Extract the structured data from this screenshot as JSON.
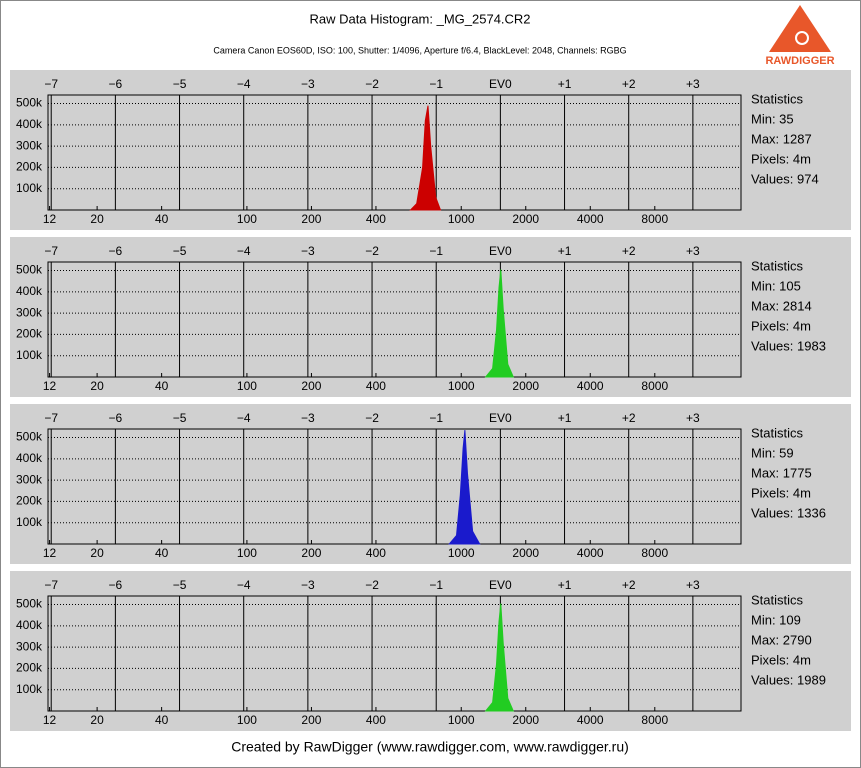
{
  "header": {
    "title": "Raw Data Histogram: _MG_2574.CR2",
    "subtitle": "Camera Canon EOS60D, ISO: 100, Shutter: 1/4096, Aperture f/6.4, BlackLevel: 2048, Channels: RGBG",
    "logo": "RAWDIGGER"
  },
  "footer": "Created by RawDigger (www.rawdigger.com, www.rawdigger.ru)",
  "chart_data": [
    {
      "type": "area",
      "color": "#cc0000",
      "xlog": true,
      "grid": true,
      "x": [
        580,
        620,
        660,
        680,
        700,
        720,
        760,
        800
      ],
      "values": [
        0,
        30000,
        200000,
        420000,
        490000,
        300000,
        60000,
        0
      ],
      "xlim": [
        11.8,
        20200
      ],
      "xticks": [
        12,
        20,
        40,
        100,
        200,
        400,
        1000,
        2000,
        4000,
        8000
      ],
      "x2lim": [
        -7.05,
        3.75
      ],
      "x2ticks": [
        {
          "value": -7,
          "label": "−7"
        },
        {
          "value": -6,
          "label": "−6"
        },
        {
          "value": -5,
          "label": "−5"
        },
        {
          "value": -4,
          "label": "−4"
        },
        {
          "value": -3,
          "label": "−3"
        },
        {
          "value": -2,
          "label": "−2"
        },
        {
          "value": -1,
          "label": "−1"
        },
        {
          "value": 0,
          "label": "EV0"
        },
        {
          "value": 1,
          "label": "+1"
        },
        {
          "value": 2,
          "label": "+2"
        },
        {
          "value": 3,
          "label": "+3"
        }
      ],
      "ylim": [
        0,
        540000
      ],
      "yticks": [
        {
          "value": 100000,
          "label": "100k"
        },
        {
          "value": 200000,
          "label": "200k"
        },
        {
          "value": 300000,
          "label": "300k"
        },
        {
          "value": 400000,
          "label": "400k"
        },
        {
          "value": 500000,
          "label": "500k"
        }
      ],
      "stats": [
        "Statistics",
        "Min: 35",
        "Max: 1287",
        "Pixels: 4m",
        "Values: 974"
      ]
    },
    {
      "type": "area",
      "color": "#22cc22",
      "xlog": true,
      "grid": true,
      "x": [
        1300,
        1400,
        1460,
        1500,
        1530,
        1570,
        1650,
        1750
      ],
      "values": [
        0,
        40000,
        220000,
        420000,
        505000,
        320000,
        60000,
        0
      ],
      "xlim": [
        11.8,
        20200
      ],
      "xticks": [
        12,
        20,
        40,
        100,
        200,
        400,
        1000,
        2000,
        4000,
        8000
      ],
      "x2lim": [
        -7.05,
        3.75
      ],
      "x2ticks": [
        {
          "value": -7,
          "label": "−7"
        },
        {
          "value": -6,
          "label": "−6"
        },
        {
          "value": -5,
          "label": "−5"
        },
        {
          "value": -4,
          "label": "−4"
        },
        {
          "value": -3,
          "label": "−3"
        },
        {
          "value": -2,
          "label": "−2"
        },
        {
          "value": -1,
          "label": "−1"
        },
        {
          "value": 0,
          "label": "EV0"
        },
        {
          "value": 1,
          "label": "+1"
        },
        {
          "value": 2,
          "label": "+2"
        },
        {
          "value": 3,
          "label": "+3"
        }
      ],
      "ylim": [
        0,
        540000
      ],
      "yticks": [
        {
          "value": 100000,
          "label": "100k"
        },
        {
          "value": 200000,
          "label": "200k"
        },
        {
          "value": 300000,
          "label": "300k"
        },
        {
          "value": 400000,
          "label": "400k"
        },
        {
          "value": 500000,
          "label": "500k"
        }
      ],
      "stats": [
        "Statistics",
        "Min: 105",
        "Max: 2814",
        "Pixels: 4m",
        "Values: 1983"
      ]
    },
    {
      "type": "area",
      "color": "#1a1acc",
      "xlog": true,
      "grid": true,
      "x": [
        880,
        950,
        990,
        1020,
        1040,
        1070,
        1130,
        1220
      ],
      "values": [
        0,
        40000,
        230000,
        450000,
        535000,
        330000,
        60000,
        0
      ],
      "xlim": [
        11.8,
        20200
      ],
      "xticks": [
        12,
        20,
        40,
        100,
        200,
        400,
        1000,
        2000,
        4000,
        8000
      ],
      "x2lim": [
        -7.05,
        3.75
      ],
      "x2ticks": [
        {
          "value": -7,
          "label": "−7"
        },
        {
          "value": -6,
          "label": "−6"
        },
        {
          "value": -5,
          "label": "−5"
        },
        {
          "value": -4,
          "label": "−4"
        },
        {
          "value": -3,
          "label": "−3"
        },
        {
          "value": -2,
          "label": "−2"
        },
        {
          "value": -1,
          "label": "−1"
        },
        {
          "value": 0,
          "label": "EV0"
        },
        {
          "value": 1,
          "label": "+1"
        },
        {
          "value": 2,
          "label": "+2"
        },
        {
          "value": 3,
          "label": "+3"
        }
      ],
      "ylim": [
        0,
        540000
      ],
      "yticks": [
        {
          "value": 100000,
          "label": "100k"
        },
        {
          "value": 200000,
          "label": "200k"
        },
        {
          "value": 300000,
          "label": "300k"
        },
        {
          "value": 400000,
          "label": "400k"
        },
        {
          "value": 500000,
          "label": "500k"
        }
      ],
      "stats": [
        "Statistics",
        "Min: 59",
        "Max: 1775",
        "Pixels: 4m",
        "Values: 1336"
      ]
    },
    {
      "type": "area",
      "color": "#22cc22",
      "xlog": true,
      "grid": true,
      "x": [
        1300,
        1400,
        1460,
        1500,
        1530,
        1570,
        1650,
        1750
      ],
      "values": [
        0,
        40000,
        220000,
        420000,
        505000,
        320000,
        60000,
        0
      ],
      "xlim": [
        11.8,
        20200
      ],
      "xticks": [
        12,
        20,
        40,
        100,
        200,
        400,
        1000,
        2000,
        4000,
        8000
      ],
      "x2lim": [
        -7.05,
        3.75
      ],
      "x2ticks": [
        {
          "value": -7,
          "label": "−7"
        },
        {
          "value": -6,
          "label": "−6"
        },
        {
          "value": -5,
          "label": "−5"
        },
        {
          "value": -4,
          "label": "−4"
        },
        {
          "value": -3,
          "label": "−3"
        },
        {
          "value": -2,
          "label": "−2"
        },
        {
          "value": -1,
          "label": "−1"
        },
        {
          "value": 0,
          "label": "EV0"
        },
        {
          "value": 1,
          "label": "+1"
        },
        {
          "value": 2,
          "label": "+2"
        },
        {
          "value": 3,
          "label": "+3"
        }
      ],
      "ylim": [
        0,
        540000
      ],
      "yticks": [
        {
          "value": 100000,
          "label": "100k"
        },
        {
          "value": 200000,
          "label": "200k"
        },
        {
          "value": 300000,
          "label": "300k"
        },
        {
          "value": 400000,
          "label": "400k"
        },
        {
          "value": 500000,
          "label": "500k"
        }
      ],
      "stats": [
        "Statistics",
        "Min: 109",
        "Max: 2790",
        "Pixels: 4m",
        "Values: 1989"
      ]
    }
  ]
}
